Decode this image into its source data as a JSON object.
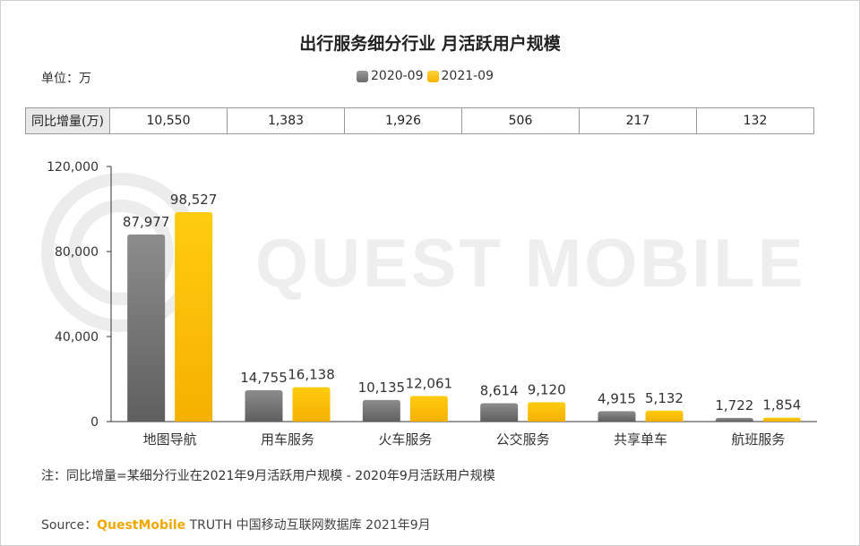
{
  "page": {
    "title": "出行服务细分行业 月活跃用户规模",
    "unit": "单位：万",
    "note": "注：同比增量=某细分行业在2021年9月活跃用户规模 - 2020年9月活跃用户规模",
    "source_prefix": "Source：",
    "source_brand": "QuestMobile",
    "source_rest": " TRUTH 中国移动互联网数据库 2021年9月",
    "watermark": "QUEST MOBILE"
  },
  "yoy": {
    "header": "同比增量(万)",
    "values": [
      "10,550",
      "1,383",
      "1,926",
      "506",
      "217",
      "132"
    ]
  },
  "colors": {
    "series_2020": "#7f7f7f",
    "series_2021": "#ffc000",
    "brand": "#f0a800"
  },
  "chart_data": {
    "type": "bar",
    "title": "出行服务细分行业 月活跃用户规模",
    "categories": [
      "地图导航",
      "用车服务",
      "火车服务",
      "公交服务",
      "共享单车",
      "航班服务"
    ],
    "series": [
      {
        "name": "2020-09",
        "values": [
          87977,
          14755,
          10135,
          8614,
          4915,
          1722
        ],
        "labels": [
          "87,977",
          "14,755",
          "10,135",
          "8,614",
          "4,915",
          "1,722"
        ]
      },
      {
        "name": "2021-09",
        "values": [
          98527,
          16138,
          12061,
          9120,
          5132,
          1854
        ],
        "labels": [
          "98,527",
          "16,138",
          "12,061",
          "9,120",
          "5,132",
          "1,854"
        ]
      }
    ],
    "ylim": [
      0,
      120000
    ],
    "yticks": [
      0,
      40000,
      80000,
      120000
    ],
    "ytick_labels": [
      "0",
      "40,000",
      "80,000",
      "120,000"
    ],
    "grid": false,
    "legend": "top-center"
  }
}
